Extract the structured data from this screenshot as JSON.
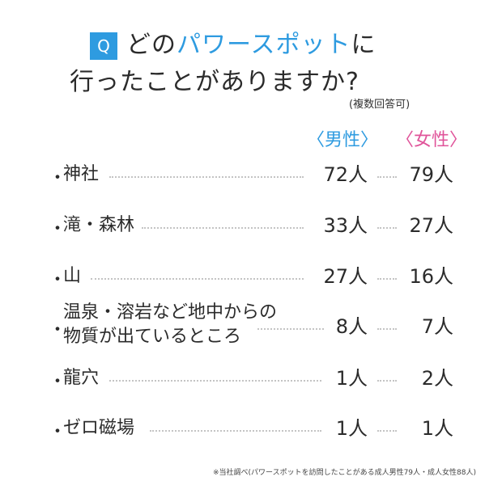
{
  "header": {
    "q_label": "Q",
    "title_line1_pre": "どの",
    "title_line1_highlight": "パワースポット",
    "title_line1_post": "に",
    "title_line2": "行ったことがありますか?",
    "note": "(複数回答可)"
  },
  "colors": {
    "accent": "#2e9be0",
    "male": "#2e9be0",
    "female": "#e0549a"
  },
  "chart_data": {
    "type": "table",
    "columns": [
      "〈男性〉",
      "〈女性〉"
    ],
    "rows": [
      {
        "bullet": "・",
        "label": "神社",
        "male": "72人",
        "female": "79人",
        "male_value": 72,
        "female_value": 79
      },
      {
        "bullet": "・",
        "label": "滝・森林",
        "male": "33人",
        "female": "27人",
        "male_value": 33,
        "female_value": 27
      },
      {
        "bullet": "・",
        "label": "山",
        "male": "27人",
        "female": "16人",
        "male_value": 27,
        "female_value": 16
      },
      {
        "bullet": "・",
        "label_line1": "温泉・溶岩など地中からの",
        "label_line2": "物質が出ているところ",
        "male": "8人",
        "female": "7人",
        "male_value": 8,
        "female_value": 7
      },
      {
        "bullet": "・",
        "label": "龍穴",
        "male": "1人",
        "female": "2人",
        "male_value": 1,
        "female_value": 2
      },
      {
        "bullet": "・",
        "label": "ゼロ磁場",
        "male": "1人",
        "female": "1人",
        "male_value": 1,
        "female_value": 1
      }
    ]
  },
  "footer": {
    "source": "※当社調べ(パワースポットを訪問したことがある成人男性79人・成人女性88人)"
  }
}
